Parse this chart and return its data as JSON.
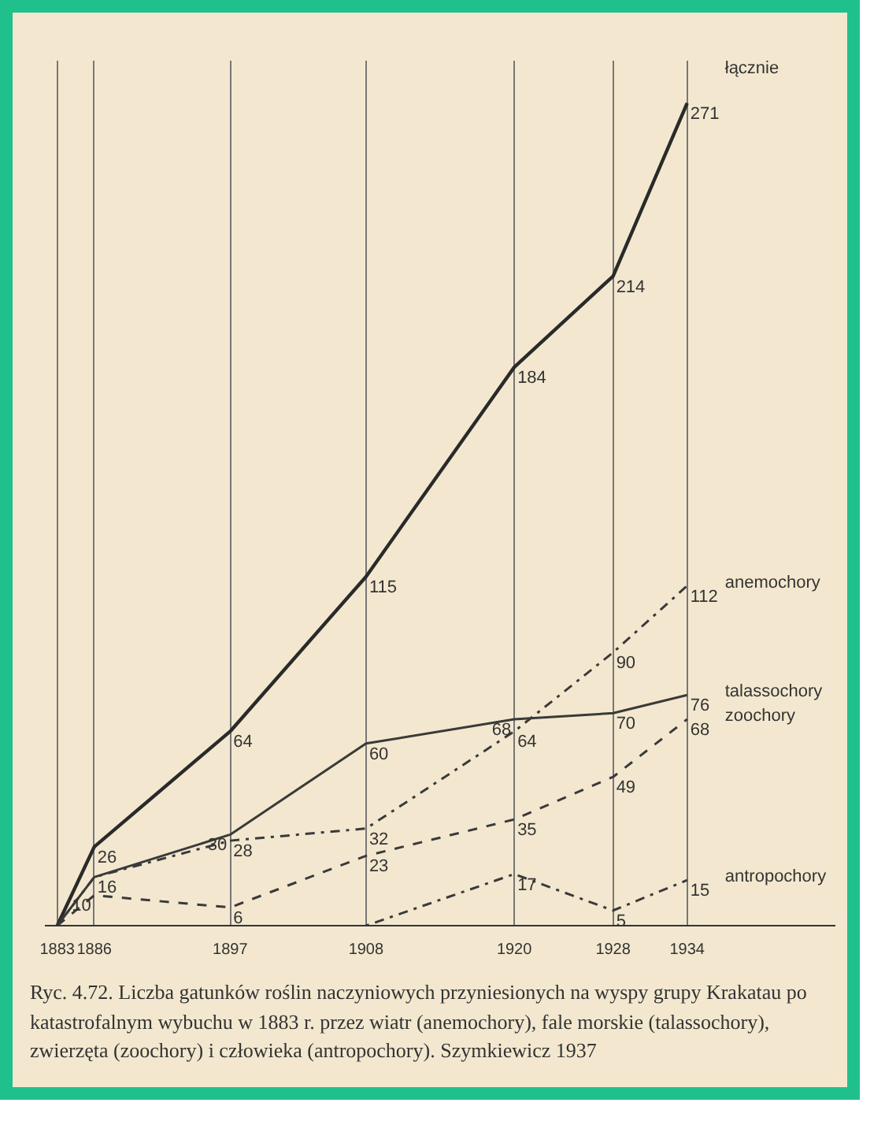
{
  "chart_data": {
    "type": "line",
    "x": [
      1883,
      1886,
      1897,
      1908,
      1920,
      1928,
      1934
    ],
    "series": [
      {
        "name": "łącznie",
        "color": "#2a2a2a",
        "line_style": "solid",
        "values": [
          0,
          26,
          64,
          115,
          184,
          214,
          271
        ],
        "value_labels": [
          null,
          "26",
          "64",
          "115",
          "184",
          "214",
          "271"
        ]
      },
      {
        "name": "anemochory",
        "color": "#3a3a3a",
        "line_style": "dashdot",
        "values": [
          0,
          16,
          28,
          32,
          64,
          90,
          112
        ],
        "value_labels": [
          null,
          null,
          "28",
          "32",
          "64",
          "90",
          "112"
        ]
      },
      {
        "name": "talassochory",
        "color": "#3a3a3a",
        "line_style": "solid",
        "values": [
          0,
          16,
          30,
          60,
          68,
          70,
          76
        ],
        "value_labels": [
          null,
          "16",
          "30",
          "60",
          "68",
          "70",
          "76"
        ]
      },
      {
        "name": "zoochory",
        "color": "#3a3a3a",
        "line_style": "dashed",
        "values": [
          0,
          10,
          6,
          23,
          35,
          49,
          68
        ],
        "value_labels": [
          null,
          "10",
          "6",
          "23",
          "35",
          "49",
          "68"
        ]
      },
      {
        "name": "antropochory",
        "color": "#3a3a3a",
        "line_style": "dotdash",
        "values": [
          null,
          null,
          null,
          0,
          17,
          5,
          15
        ],
        "value_labels": [
          null,
          null,
          null,
          null,
          "17",
          "5",
          "15"
        ]
      }
    ],
    "xlim": [
      1882,
      1946
    ],
    "ylim": [
      0,
      285
    ],
    "xticks": [
      1883,
      1886,
      1897,
      1908,
      1920,
      1928,
      1934
    ],
    "tick_labels": "x",
    "grid": "x",
    "marker": "none",
    "annotations": [
      "Ryc. 4.72. Liczba gatunków roślin naczyniowych przyniesionych na wyspy grupy Krakatau po katastrofalnym wybuchu w 1883 r. przez wiatr (anemochory), fale morskie (talassochory), zwierzęta (zoochory) i człowieka (antropochory). Szymkiewicz 1937"
    ]
  }
}
